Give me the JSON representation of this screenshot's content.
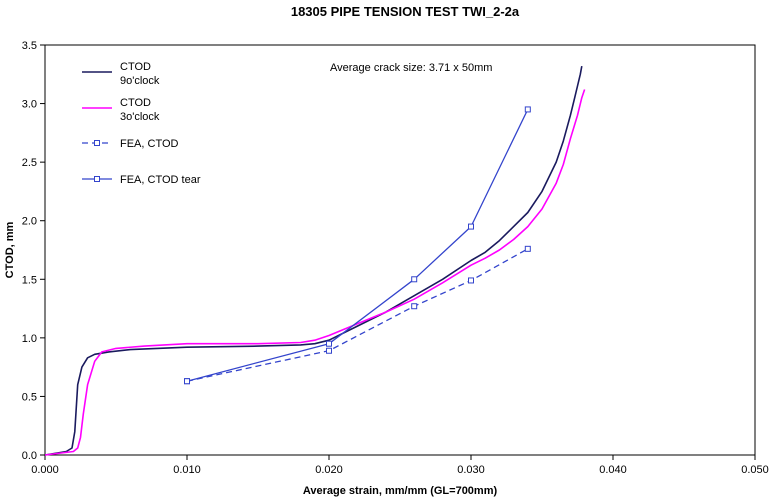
{
  "chart_data": {
    "type": "line",
    "title": "18305 PIPE TENSION TEST TWI_2-2a",
    "xlabel": "Average strain, mm/mm (GL=700mm)",
    "ylabel": "CTOD, mm",
    "xlim": [
      0,
      0.05
    ],
    "ylim": [
      0,
      3.5
    ],
    "xticks": [
      "0.000",
      "0.010",
      "0.020",
      "0.030",
      "0.040",
      "0.050"
    ],
    "yticks": [
      "0.0",
      "0.5",
      "1.0",
      "1.5",
      "2.0",
      "2.5",
      "3.0",
      "3.5"
    ],
    "annotation": "Average crack size: 3.71 x 50mm",
    "grid": false,
    "legend_position": "top-left",
    "series": [
      {
        "name": "CTOD\n9o'clock",
        "color": "#1a1a5e",
        "style": "solid",
        "marker": "none",
        "x": [
          0,
          0.0015,
          0.0019,
          0.0021,
          0.0023,
          0.0026,
          0.003,
          0.0035,
          0.0045,
          0.006,
          0.01,
          0.015,
          0.018,
          0.019,
          0.02,
          0.022,
          0.024,
          0.026,
          0.028,
          0.03,
          0.031,
          0.032,
          0.033,
          0.034,
          0.035,
          0.036,
          0.0365,
          0.037,
          0.0373,
          0.0375,
          0.0377,
          0.0378
        ],
        "y": [
          0,
          0.03,
          0.06,
          0.2,
          0.6,
          0.75,
          0.83,
          0.86,
          0.88,
          0.9,
          0.92,
          0.93,
          0.94,
          0.95,
          0.98,
          1.1,
          1.22,
          1.36,
          1.5,
          1.66,
          1.73,
          1.83,
          1.95,
          2.07,
          2.25,
          2.5,
          2.68,
          2.9,
          3.05,
          3.15,
          3.25,
          3.32
        ]
      },
      {
        "name": "CTOD\n3o'clock",
        "color": "#ff00ff",
        "style": "solid",
        "marker": "none",
        "x": [
          0,
          0.002,
          0.0023,
          0.0025,
          0.0027,
          0.003,
          0.0035,
          0.004,
          0.005,
          0.007,
          0.01,
          0.015,
          0.018,
          0.019,
          0.02,
          0.022,
          0.024,
          0.026,
          0.028,
          0.03,
          0.031,
          0.032,
          0.033,
          0.034,
          0.035,
          0.036,
          0.0365,
          0.037,
          0.0375,
          0.0378,
          0.038
        ],
        "y": [
          0,
          0.03,
          0.06,
          0.15,
          0.35,
          0.6,
          0.8,
          0.88,
          0.91,
          0.93,
          0.95,
          0.95,
          0.96,
          0.98,
          1.02,
          1.12,
          1.22,
          1.33,
          1.47,
          1.62,
          1.68,
          1.75,
          1.84,
          1.95,
          2.1,
          2.32,
          2.48,
          2.7,
          2.9,
          3.05,
          3.12
        ]
      },
      {
        "name": "FEA, CTOD",
        "color": "#3344cc",
        "style": "dashed",
        "marker": "square",
        "x": [
          0.01,
          0.02,
          0.026,
          0.03,
          0.034
        ],
        "y": [
          0.63,
          0.89,
          1.27,
          1.49,
          1.76
        ]
      },
      {
        "name": "FEA, CTOD tear",
        "color": "#3344cc",
        "style": "solid",
        "marker": "square",
        "x": [
          0.01,
          0.02,
          0.026,
          0.03,
          0.034
        ],
        "y": [
          0.63,
          0.95,
          1.5,
          1.95,
          2.95
        ]
      }
    ]
  }
}
